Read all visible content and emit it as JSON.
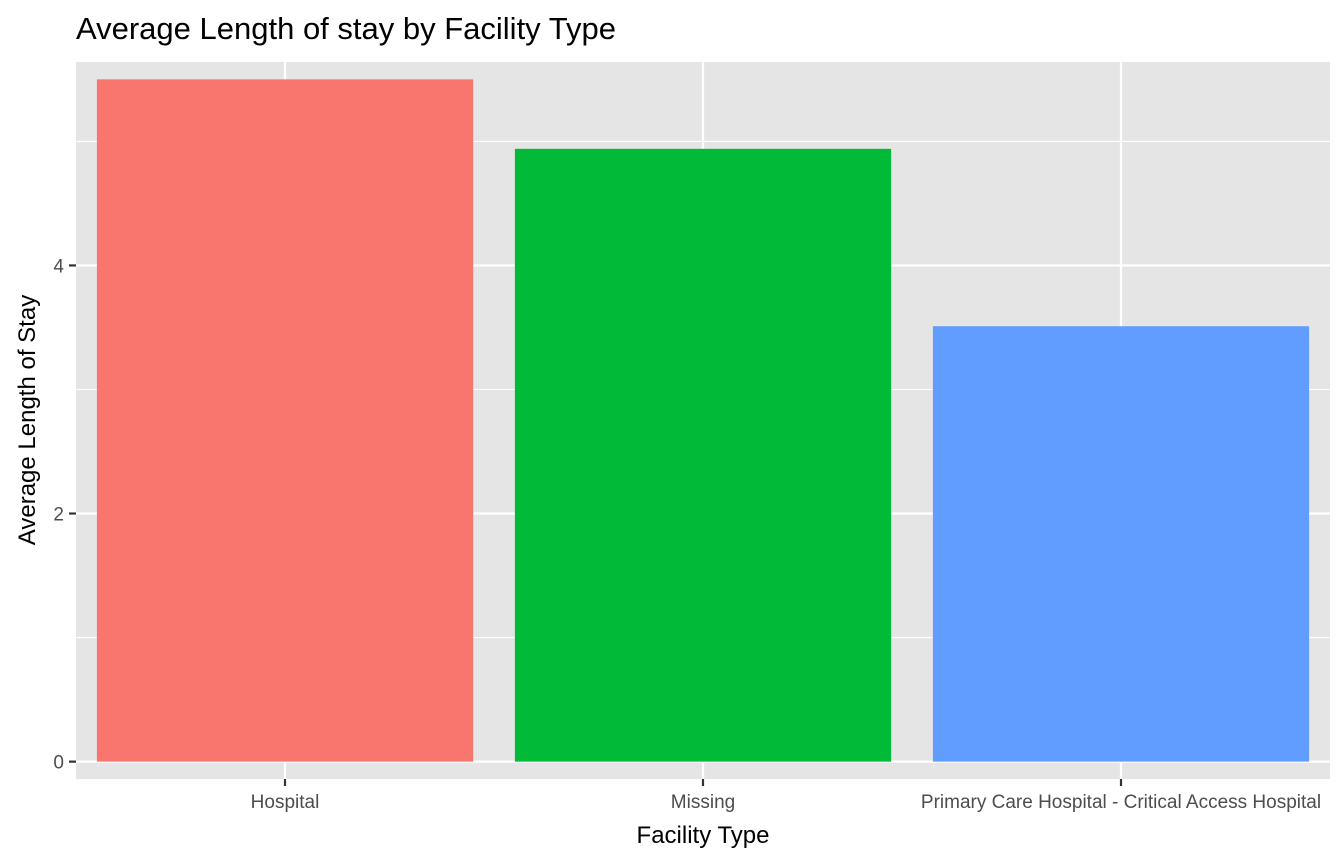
{
  "chart_data": {
    "type": "bar",
    "title": "Average Length of stay by Facility Type",
    "xlabel": "Facility Type",
    "ylabel": "Average Length of Stay",
    "categories": [
      "Hospital",
      "Missing",
      "Primary Care Hospital - Critical Access Hospital"
    ],
    "values": [
      5.5,
      4.94,
      3.51
    ],
    "colors": [
      "#F8766D",
      "#00BA38",
      "#619CFF"
    ],
    "ylim": [
      -0.14,
      5.64
    ],
    "y_ticks": [
      0,
      2,
      4
    ],
    "y_tick_labels": [
      "0",
      "2",
      "4"
    ],
    "y_minor_ticks": [
      1,
      3,
      5
    ],
    "grid": true,
    "panel_background": "#E5E5E5",
    "legend": "none"
  }
}
